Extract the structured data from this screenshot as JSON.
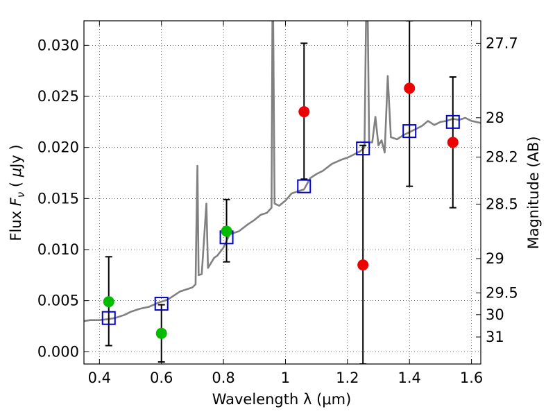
{
  "chart_data": {
    "type": "scatter",
    "title": "",
    "xlabel": "Wavelength  λ (μm)",
    "ylabel": "Flux  F_ν  ( μJy )",
    "ylabel_parts": {
      "a": "Flux  ",
      "b": "F",
      "c": "ν",
      "d": "  ( ",
      "e": "μ",
      "f": "Jy )"
    },
    "y2label": "Magnitude (AB)",
    "xlim": [
      0.35,
      1.63
    ],
    "ylim": [
      -0.0012,
      0.0324
    ],
    "x_ticks": [
      0.4,
      0.6,
      0.8,
      1.0,
      1.2,
      1.4,
      1.6
    ],
    "x_tick_labels": [
      "0.4",
      "0.6",
      "0.8",
      "1",
      "1.2",
      "1.4",
      "1.6"
    ],
    "y_ticks": [
      0.0,
      0.005,
      0.01,
      0.015,
      0.02,
      0.025,
      0.03
    ],
    "y_tick_labels": [
      "0.000",
      "0.005",
      "0.010",
      "0.015",
      "0.020",
      "0.025",
      "0.030"
    ],
    "mag_tick_labels": [
      "27.7",
      "28",
      "28.2",
      "28.5",
      "29",
      "29.5",
      "30",
      "31"
    ],
    "grid": true,
    "colors": {
      "spectrum": "#808080",
      "model": "#0000cc",
      "green": "#00bb00",
      "red": "#ee0000",
      "errorbar": "#000000"
    },
    "spectrum": [
      [
        0.35,
        0.003
      ],
      [
        0.37,
        0.0031
      ],
      [
        0.4,
        0.0031
      ],
      [
        0.43,
        0.0032
      ],
      [
        0.45,
        0.0033
      ],
      [
        0.48,
        0.0036
      ],
      [
        0.5,
        0.0039
      ],
      [
        0.53,
        0.0042
      ],
      [
        0.56,
        0.0044
      ],
      [
        0.59,
        0.0048
      ],
      [
        0.62,
        0.0051
      ],
      [
        0.64,
        0.0055
      ],
      [
        0.66,
        0.0059
      ],
      [
        0.68,
        0.0061
      ],
      [
        0.7,
        0.0063
      ],
      [
        0.71,
        0.0066
      ],
      [
        0.712,
        0.011
      ],
      [
        0.716,
        0.0182
      ],
      [
        0.72,
        0.0075
      ],
      [
        0.73,
        0.0076
      ],
      [
        0.745,
        0.0145
      ],
      [
        0.75,
        0.0082
      ],
      [
        0.77,
        0.0092
      ],
      [
        0.78,
        0.0094
      ],
      [
        0.8,
        0.0102
      ],
      [
        0.82,
        0.0115
      ],
      [
        0.85,
        0.0118
      ],
      [
        0.88,
        0.0125
      ],
      [
        0.9,
        0.0129
      ],
      [
        0.92,
        0.0134
      ],
      [
        0.94,
        0.0136
      ],
      [
        0.955,
        0.0141
      ],
      [
        0.958,
        0.033
      ],
      [
        0.96,
        0.034
      ],
      [
        0.965,
        0.0145
      ],
      [
        0.98,
        0.0143
      ],
      [
        1.0,
        0.0148
      ],
      [
        1.02,
        0.0155
      ],
      [
        1.04,
        0.0157
      ],
      [
        1.06,
        0.0159
      ],
      [
        1.08,
        0.017
      ],
      [
        1.1,
        0.0174
      ],
      [
        1.12,
        0.0177
      ],
      [
        1.15,
        0.0184
      ],
      [
        1.18,
        0.0188
      ],
      [
        1.2,
        0.019
      ],
      [
        1.22,
        0.0193
      ],
      [
        1.24,
        0.0196
      ],
      [
        1.255,
        0.02
      ],
      [
        1.26,
        0.033
      ],
      [
        1.265,
        0.034
      ],
      [
        1.27,
        0.0205
      ],
      [
        1.28,
        0.0205
      ],
      [
        1.29,
        0.023
      ],
      [
        1.3,
        0.0202
      ],
      [
        1.31,
        0.0207
      ],
      [
        1.32,
        0.0195
      ],
      [
        1.33,
        0.027
      ],
      [
        1.34,
        0.021
      ],
      [
        1.36,
        0.0208
      ],
      [
        1.38,
        0.0212
      ],
      [
        1.4,
        0.0215
      ],
      [
        1.42,
        0.0218
      ],
      [
        1.44,
        0.0221
      ],
      [
        1.46,
        0.0226
      ],
      [
        1.48,
        0.0222
      ],
      [
        1.5,
        0.0225
      ],
      [
        1.52,
        0.0226
      ],
      [
        1.54,
        0.0228
      ],
      [
        1.56,
        0.0227
      ],
      [
        1.58,
        0.0229
      ],
      [
        1.6,
        0.0226
      ],
      [
        1.63,
        0.0224
      ]
    ],
    "model_photometry": [
      {
        "x": 0.43,
        "y": 0.0033
      },
      {
        "x": 0.6,
        "y": 0.0047
      },
      {
        "x": 0.81,
        "y": 0.0112
      },
      {
        "x": 1.06,
        "y": 0.0162
      },
      {
        "x": 1.25,
        "y": 0.0199
      },
      {
        "x": 1.4,
        "y": 0.0216
      },
      {
        "x": 1.54,
        "y": 0.0225
      }
    ],
    "observed_photometry": [
      {
        "x": 0.43,
        "y": 0.0049,
        "err_low": 0.0006,
        "err_high": 0.0093,
        "color": "green"
      },
      {
        "x": 0.6,
        "y": 0.0018,
        "err_low": -0.001,
        "err_high": 0.0046,
        "color": "green"
      },
      {
        "x": 0.81,
        "y": 0.0118,
        "err_low": 0.0088,
        "err_high": 0.0149,
        "color": "green"
      },
      {
        "x": 1.06,
        "y": 0.0235,
        "err_low": 0.0169,
        "err_high": 0.0302,
        "color": "red"
      },
      {
        "x": 1.25,
        "y": 0.0085,
        "err_low": -0.0012,
        "err_high": 0.0202,
        "color": "red"
      },
      {
        "x": 1.4,
        "y": 0.0258,
        "err_low": 0.0162,
        "err_high": 0.0324,
        "color": "red"
      },
      {
        "x": 1.54,
        "y": 0.0205,
        "err_low": 0.0141,
        "err_high": 0.0269,
        "color": "red"
      }
    ]
  }
}
